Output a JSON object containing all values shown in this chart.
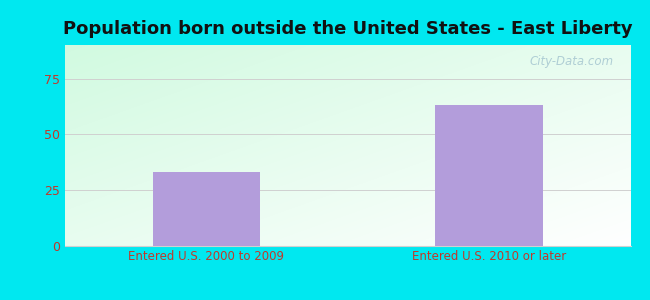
{
  "title": "Population born outside the United States - East Liberty",
  "categories": [
    "Entered U.S. 2000 to 2009",
    "Entered U.S. 2010 or later"
  ],
  "values": [
    33,
    63
  ],
  "bar_color": "#b39ddb",
  "background_outer": "#00e8f0",
  "ylim": [
    0,
    90
  ],
  "yticks": [
    0,
    25,
    50,
    75
  ],
  "title_fontsize": 13,
  "tick_label_color": "#c0392b",
  "grid_color": "#d0d0d0",
  "watermark": "City-Data.com"
}
